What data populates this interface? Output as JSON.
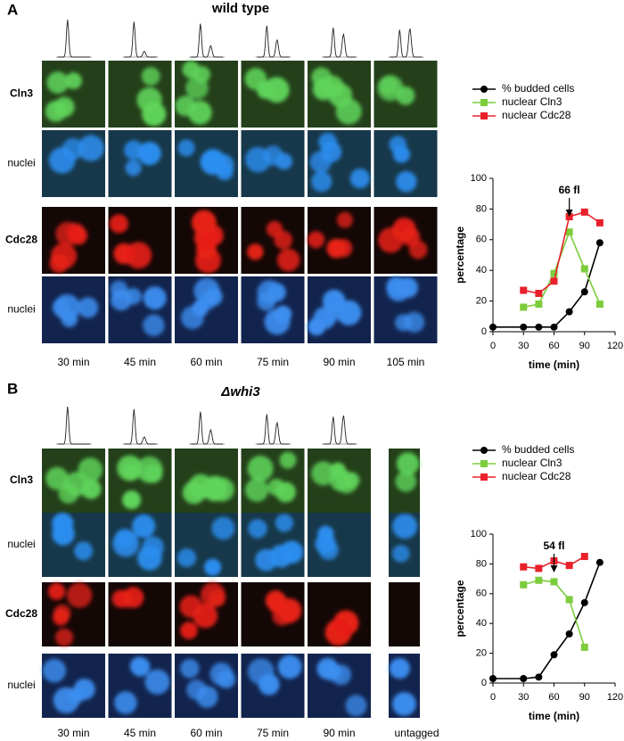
{
  "figure": {
    "panels": [
      {
        "label": "A",
        "title": "wild type",
        "rows": [
          "Cln3",
          "nuclei",
          "Cdc28",
          "nuclei"
        ],
        "columns": [
          "30 min",
          "45 min",
          "60 min",
          "75 min",
          "90 min",
          "105 min"
        ]
      },
      {
        "label": "B",
        "title": "Δwhi3",
        "rows": [
          "Cln3",
          "nuclei",
          "Cdc28",
          "nuclei"
        ],
        "columns": [
          "30 min",
          "45 min",
          "60 min",
          "75 min",
          "90 min",
          "untagged"
        ]
      }
    ]
  },
  "chart_data": [
    {
      "type": "line",
      "xlabel": "time (min)",
      "ylabel": "percentage",
      "xlim": [
        0,
        120
      ],
      "xticks": [
        0,
        30,
        60,
        90,
        120
      ],
      "ylim": [
        0,
        100
      ],
      "yticks": [
        0,
        20,
        40,
        60,
        80,
        100
      ],
      "annotation": {
        "text": "66 fl",
        "x": 75
      },
      "series": [
        {
          "name": "% budded cells",
          "color": "#000000",
          "marker": "circle",
          "x": [
            0,
            30,
            45,
            60,
            75,
            90,
            105
          ],
          "values": [
            3,
            3,
            3,
            3,
            13,
            26,
            58
          ]
        },
        {
          "name": "nuclear Cln3",
          "color": "#7ccc3c",
          "marker": "square",
          "x": [
            30,
            45,
            60,
            75,
            90,
            105
          ],
          "values": [
            16,
            18,
            38,
            65,
            41,
            18
          ]
        },
        {
          "name": "nuclear Cdc28",
          "color": "#e8202a",
          "marker": "square",
          "x": [
            30,
            45,
            60,
            75,
            90,
            105
          ],
          "values": [
            27,
            25,
            33,
            75,
            78,
            71
          ]
        }
      ]
    },
    {
      "type": "line",
      "xlabel": "time (min)",
      "ylabel": "percentage",
      "xlim": [
        0,
        120
      ],
      "xticks": [
        0,
        30,
        60,
        90,
        120
      ],
      "ylim": [
        0,
        100
      ],
      "yticks": [
        0,
        20,
        40,
        60,
        80,
        100
      ],
      "annotation": {
        "text": "54 fl",
        "x": 60
      },
      "series": [
        {
          "name": "% budded cells",
          "color": "#000000",
          "marker": "circle",
          "x": [
            0,
            30,
            45,
            60,
            75,
            90,
            105
          ],
          "values": [
            3,
            3,
            4,
            19,
            33,
            54,
            81
          ]
        },
        {
          "name": "nuclear Cln3",
          "color": "#7ccc3c",
          "marker": "square",
          "x": [
            30,
            45,
            60,
            75,
            90
          ],
          "values": [
            66,
            69,
            68,
            56,
            24
          ]
        },
        {
          "name": "nuclear Cdc28",
          "color": "#e8202a",
          "marker": "square",
          "x": [
            30,
            45,
            60,
            75,
            90
          ],
          "values": [
            78,
            77,
            82,
            79,
            85
          ]
        }
      ]
    }
  ]
}
